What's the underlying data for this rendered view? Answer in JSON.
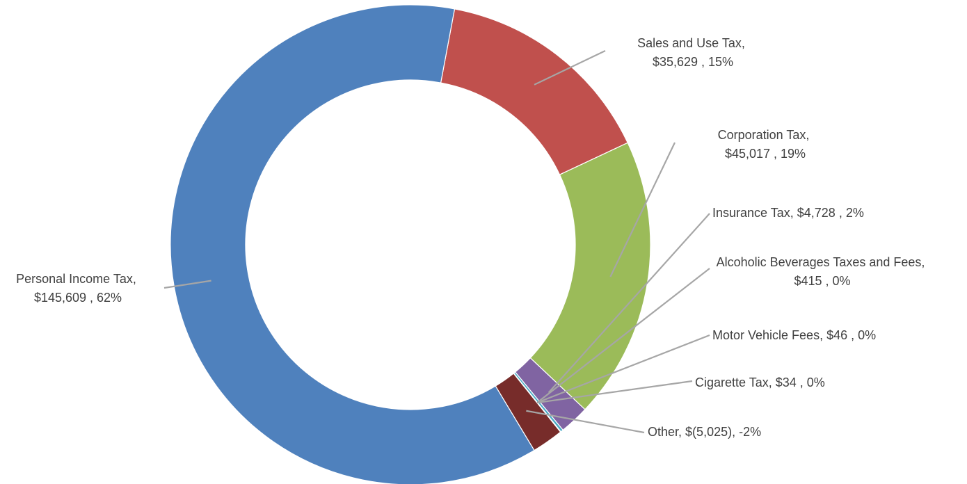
{
  "chart_data": {
    "type": "pie",
    "variant": "donut",
    "title": "",
    "slices": [
      {
        "label": "Sales and Use Tax",
        "value_text": "$35,629 , 15%",
        "value": 35629,
        "percent": 15,
        "color": "#c0504d"
      },
      {
        "label": "Corporation Tax",
        "value_text": "$45,017 , 19%",
        "value": 45017,
        "percent": 19,
        "color": "#9bbb59"
      },
      {
        "label": "Insurance Tax",
        "value_text": "$4,728 , 2%",
        "value": 4728,
        "percent": 2,
        "color": "#8064a2"
      },
      {
        "label": "Alcoholic Beverages Taxes and Fees",
        "value_text": "$415 , 0%",
        "value": 415,
        "percent": 0,
        "color": "#4bacc6"
      },
      {
        "label": "Motor Vehicle Fees",
        "value_text": "$46 , 0%",
        "value": 46,
        "percent": 0,
        "color": "#f79646"
      },
      {
        "label": "Cigarette Tax",
        "value_text": "$34 , 0%",
        "value": 34,
        "percent": 0,
        "color": "#2c4d75"
      },
      {
        "label": "Other",
        "value_text": "$(5,025), -2%",
        "value": -5025,
        "percent": -2,
        "color": "#772c2a"
      },
      {
        "label": "Personal Income Tax",
        "value_text": "$145,609 , 62%",
        "value": 145609,
        "percent": 62,
        "color": "#4f81bd"
      }
    ]
  }
}
